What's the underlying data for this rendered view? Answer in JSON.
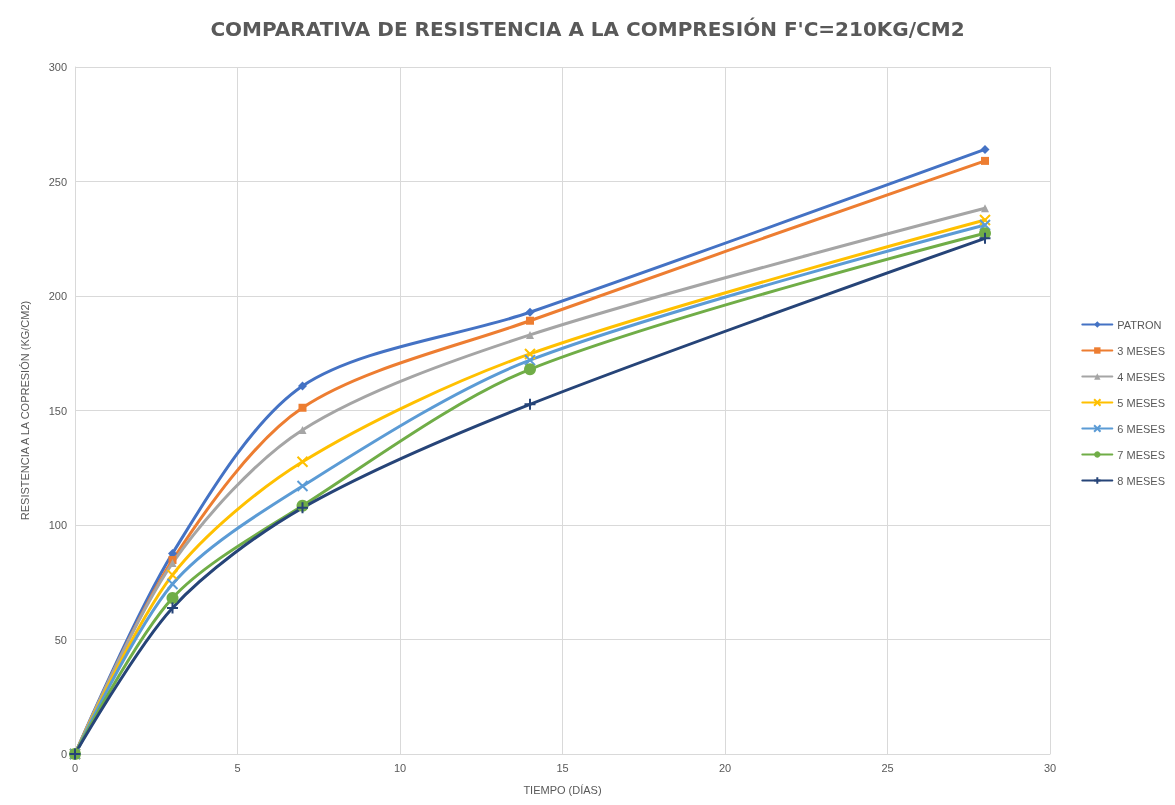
{
  "chart_data": {
    "type": "line",
    "title": "COMPARATIVA DE RESISTENCIA A LA COMPRESIÓN F'C=210KG/CM2",
    "xlabel": "TIEMPO (DÍAS)",
    "ylabel": "RESISTENCIA A LA COPRESIÓN (KG/CM2)",
    "x": [
      0,
      3,
      7,
      14,
      28
    ],
    "xlim": [
      0,
      30
    ],
    "xticks": [
      0,
      5,
      10,
      15,
      20,
      25,
      30
    ],
    "ylim": [
      0,
      300
    ],
    "yticks": [
      0,
      50,
      100,
      150,
      200,
      250,
      300
    ],
    "grid": true,
    "legend": "right",
    "line_style": "solid",
    "series": [
      {
        "name": "PATRON",
        "color": "#4472c4",
        "marker": "diamond",
        "values": [
          0,
          87.6,
          160.7,
          192.9,
          264
        ]
      },
      {
        "name": "3 MESES",
        "color": "#ed7d31",
        "marker": "square",
        "values": [
          0,
          84.7,
          151.2,
          189.2,
          259
        ]
      },
      {
        "name": "4 MESES",
        "color": "#a5a5a5",
        "marker": "triangle",
        "values": [
          0,
          83.4,
          141.5,
          183,
          238.3
        ]
      },
      {
        "name": "5 MESES",
        "color": "#ffc000",
        "marker": "cross",
        "values": [
          0,
          78.2,
          127.6,
          174.7,
          233.2
        ]
      },
      {
        "name": "6 MESES",
        "color": "#5b9bd5",
        "marker": "cross",
        "values": [
          0,
          74.2,
          117,
          172,
          231
        ]
      },
      {
        "name": "7 MESES",
        "color": "#70ad47",
        "marker": "circle",
        "values": [
          0,
          68.1,
          108.4,
          168,
          227.4
        ]
      },
      {
        "name": "8 MESES",
        "color": "#264478",
        "marker": "plus",
        "values": [
          0,
          63.8,
          107.5,
          152.7,
          225.2
        ]
      }
    ]
  }
}
